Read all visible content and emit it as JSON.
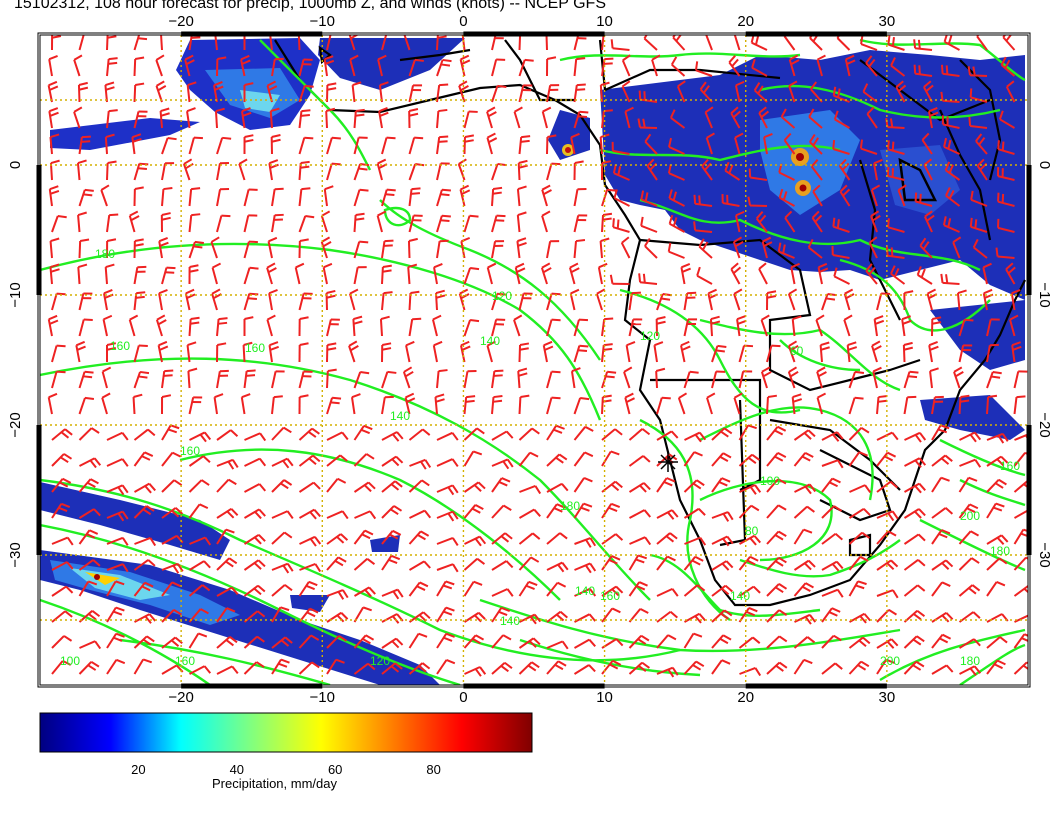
{
  "title": "15102312, 108 hour forecast for precip, 1000mb Z, and winds (knots) -- NCEP GFS",
  "map": {
    "lon_ticks": [
      -20,
      -10,
      0,
      10,
      20,
      30
    ],
    "lat_ticks": [
      0,
      -10,
      -20,
      -30
    ],
    "lon_labels": [
      "−20",
      "−10",
      "0",
      "10",
      "20",
      "30"
    ],
    "lat_labels": [
      "0",
      "−10",
      "−20",
      "−30"
    ],
    "lon_range": [
      -30,
      40
    ],
    "lat_range": [
      -40,
      10
    ],
    "contour_color": "#22ee22",
    "barb_color": "#ee2222",
    "grid_color": "#d4b000",
    "contour_labels": [
      "180",
      "160",
      "160",
      "140",
      "120",
      "160",
      "140",
      "180",
      "160",
      "140",
      "120",
      "100",
      "160",
      "180",
      "200",
      "180",
      "200",
      "160",
      "140",
      "140",
      "120",
      "60",
      "80",
      "100"
    ]
  },
  "colorbar": {
    "ticks": [
      "20",
      "40",
      "60",
      "80"
    ],
    "tick_values": [
      20,
      40,
      60,
      80
    ],
    "range": [
      0,
      100
    ],
    "label": "Precipitation, mm/day",
    "colors": [
      "#000080",
      "#0000ff",
      "#00ffff",
      "#80ff80",
      "#ffff00",
      "#ff8000",
      "#ff0000",
      "#800000"
    ]
  }
}
